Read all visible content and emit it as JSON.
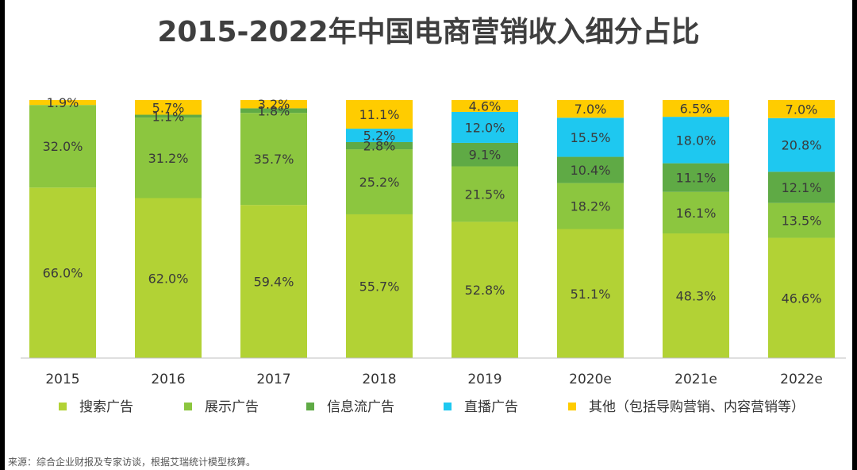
{
  "chart_data": {
    "type": "bar",
    "stacked": true,
    "title": "2015-2022年中国电商营销收入细分占比",
    "categories": [
      "2015",
      "2016",
      "2017",
      "2018",
      "2019",
      "2020e",
      "2021e",
      "2022e"
    ],
    "series": [
      {
        "name": "搜索广告",
        "color": "#b2d235",
        "values": [
          66.0,
          62.0,
          59.4,
          55.7,
          52.8,
          51.1,
          48.3,
          46.6
        ],
        "labels": [
          "66.0%",
          "62.0%",
          "59.4%",
          "55.7%",
          "52.8%",
          "51.1%",
          "48.3%",
          "46.6%"
        ]
      },
      {
        "name": "展示广告",
        "color": "#8cc63f",
        "values": [
          32.0,
          31.2,
          35.7,
          25.2,
          21.5,
          18.2,
          16.1,
          13.5
        ],
        "labels": [
          "32.0%",
          "31.2%",
          "35.7%",
          "25.2%",
          "21.5%",
          "18.2%",
          "16.1%",
          "13.5%"
        ]
      },
      {
        "name": "信息流广告",
        "color": "#5faa45",
        "values": [
          0.0,
          1.1,
          1.8,
          2.8,
          9.1,
          10.4,
          11.1,
          12.1
        ],
        "labels": [
          "",
          "1.1%",
          "1.8%",
          "2.8%",
          "9.1%",
          "10.4%",
          "11.1%",
          "12.1%"
        ]
      },
      {
        "name": "直播广告",
        "color": "#1ec8f0",
        "values": [
          0.0,
          0.0,
          0.0,
          5.2,
          12.0,
          15.5,
          18.0,
          20.8
        ],
        "labels": [
          "",
          "",
          "",
          "5.2%",
          "12.0%",
          "15.5%",
          "18.0%",
          "20.8%"
        ]
      },
      {
        "name": "其他（包括导购营销、内容营销等）",
        "color": "#ffcc00",
        "values": [
          1.9,
          5.7,
          3.2,
          11.1,
          4.6,
          7.0,
          6.5,
          7.0
        ],
        "labels": [
          "1.9%",
          "5.7%",
          "3.2%",
          "11.1%",
          "4.6%",
          "7.0%",
          "6.5%",
          "7.0%"
        ]
      }
    ],
    "ylim": [
      0,
      100
    ],
    "grid": false,
    "legend_position": "bottom"
  },
  "source": "来源：综合企业财报及专家访谈，根据艾瑞统计模型核算。"
}
